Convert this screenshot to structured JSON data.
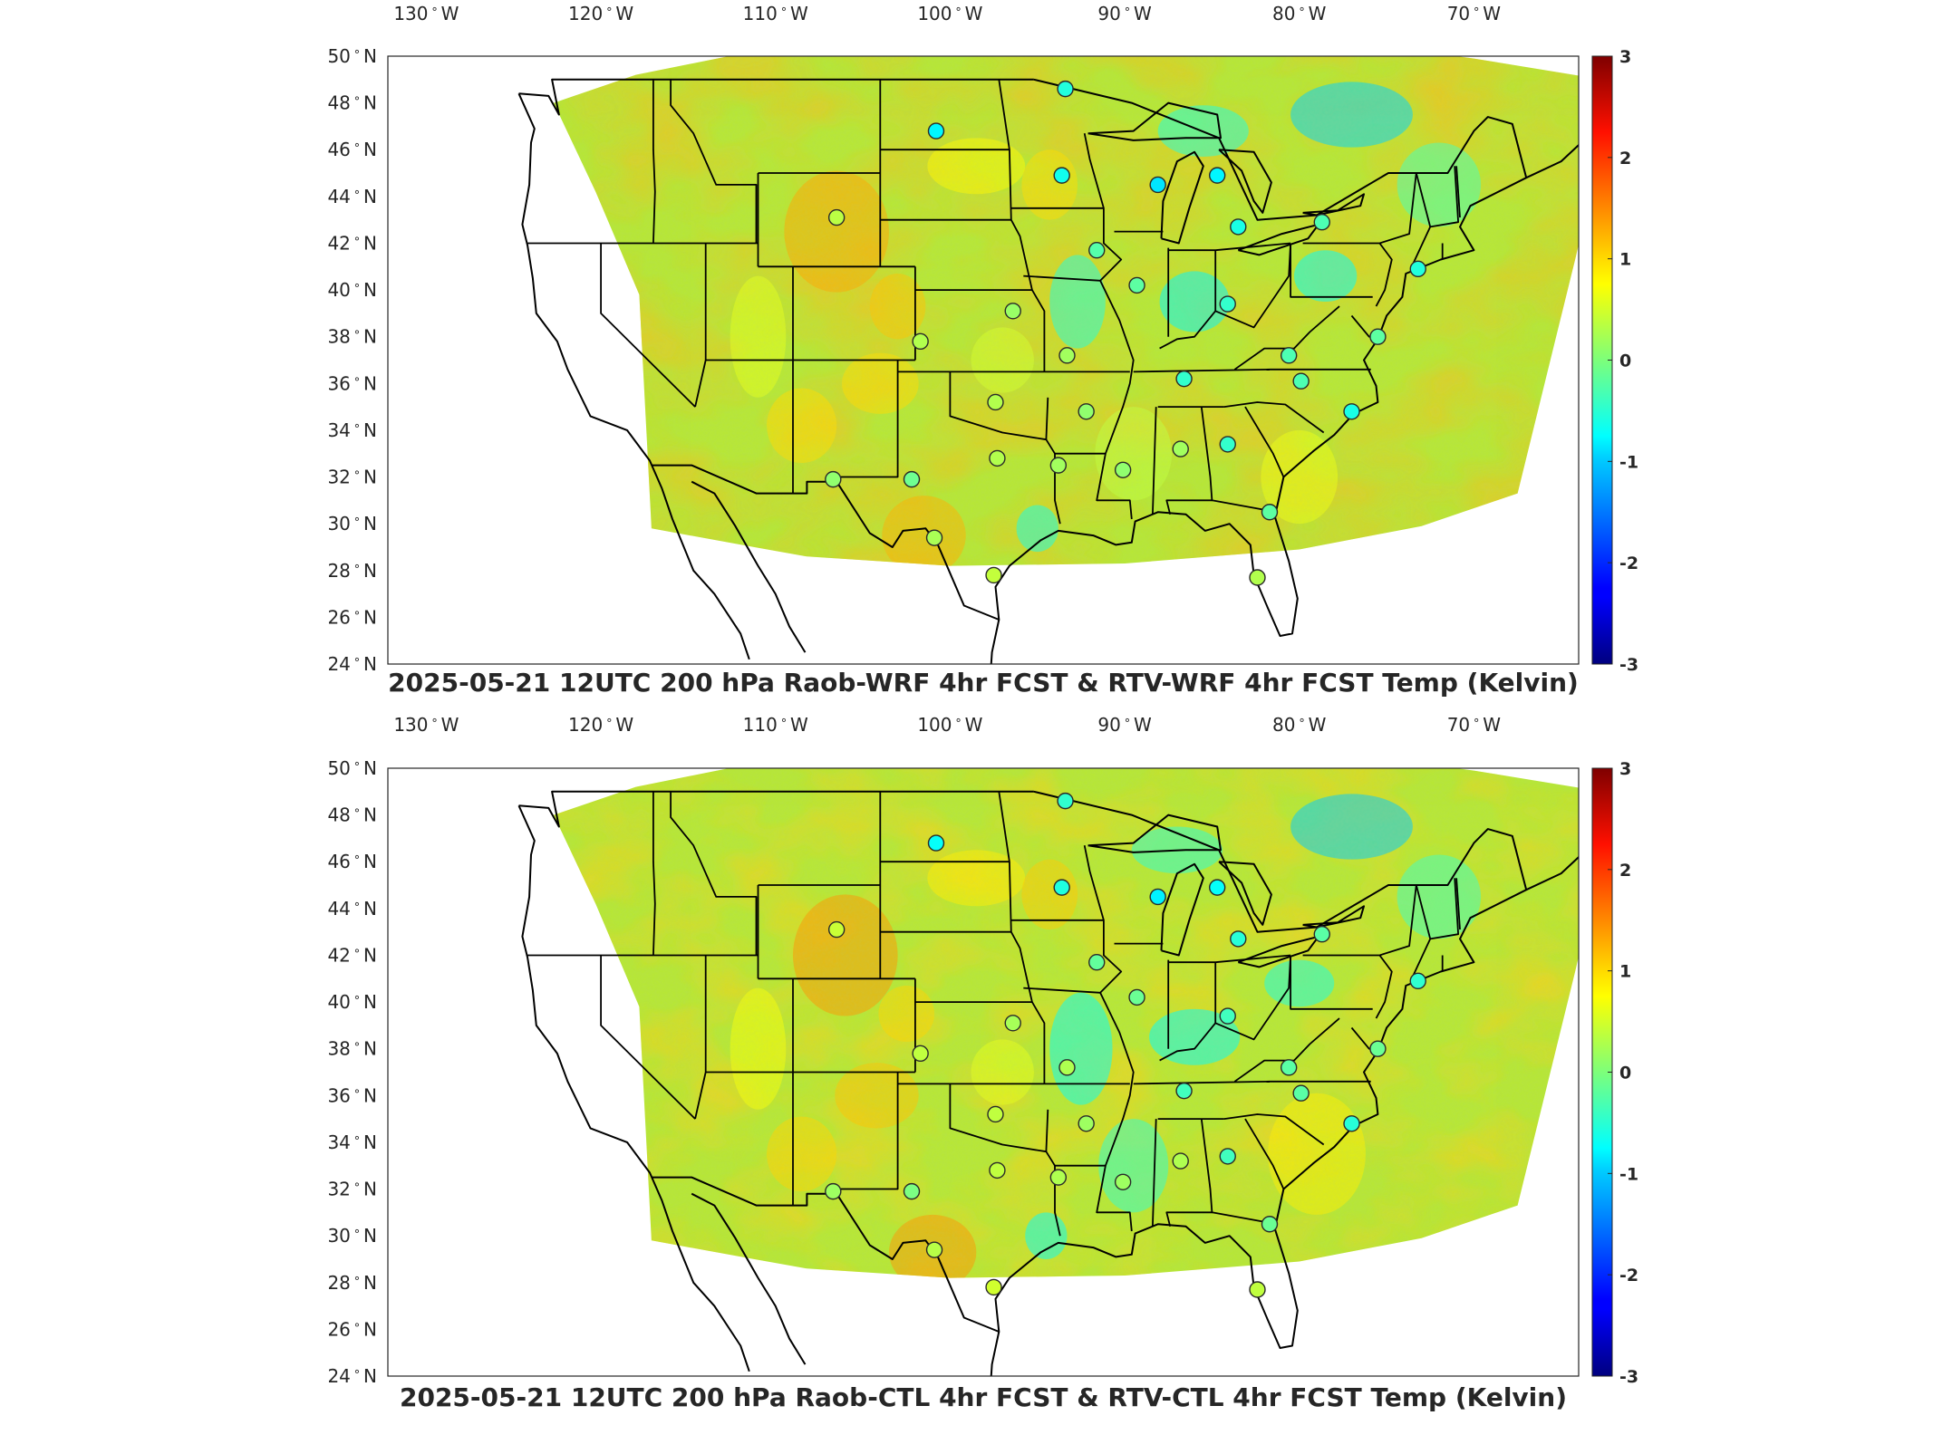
{
  "panels": [
    {
      "title": "2025-05-21 12UTC 200 hPa Raob-WRF 4hr FCST & RTV-WRF 4hr FCST Temp (Kelvin)",
      "variant": 0
    },
    {
      "title": "2025-05-21 12UTC 200 hPa Raob-CTL 4hr FCST & RTV-CTL 4hr FCST Temp (Kelvin)",
      "variant": 1
    }
  ],
  "lon_labels": [
    {
      "lon": -130,
      "text": "130",
      "hemi": "W"
    },
    {
      "lon": -120,
      "text": "120",
      "hemi": "W"
    },
    {
      "lon": -110,
      "text": "110",
      "hemi": "W"
    },
    {
      "lon": -100,
      "text": "100",
      "hemi": "W"
    },
    {
      "lon": -90,
      "text": "90",
      "hemi": "W"
    },
    {
      "lon": -80,
      "text": "80",
      "hemi": "W"
    },
    {
      "lon": -70,
      "text": "70",
      "hemi": "W"
    }
  ],
  "lat_labels": [
    {
      "lat": 50,
      "text": "50",
      "hemi": "N"
    },
    {
      "lat": 48,
      "text": "48",
      "hemi": "N"
    },
    {
      "lat": 46,
      "text": "46",
      "hemi": "N"
    },
    {
      "lat": 44,
      "text": "44",
      "hemi": "N"
    },
    {
      "lat": 42,
      "text": "42",
      "hemi": "N"
    },
    {
      "lat": 40,
      "text": "40",
      "hemi": "N"
    },
    {
      "lat": 38,
      "text": "38",
      "hemi": "N"
    },
    {
      "lat": 36,
      "text": "36",
      "hemi": "N"
    },
    {
      "lat": 34,
      "text": "34",
      "hemi": "N"
    },
    {
      "lat": 32,
      "text": "32",
      "hemi": "N"
    },
    {
      "lat": 30,
      "text": "30",
      "hemi": "N"
    },
    {
      "lat": 28,
      "text": "28",
      "hemi": "N"
    },
    {
      "lat": 26,
      "text": "26",
      "hemi": "N"
    },
    {
      "lat": 24,
      "text": "24",
      "hemi": "N"
    }
  ],
  "colorbar": {
    "min": -3,
    "max": 3,
    "ticks": [
      "3",
      "2",
      "1",
      "0",
      "-1",
      "-2",
      "-3"
    ],
    "colormap": "jet"
  },
  "colors": {
    "field_base": "#b8e832",
    "outline": "#000000",
    "station_edge": "#2a2a2a"
  },
  "raob_stations": [
    {
      "lon": -93.4,
      "lat": 48.6,
      "v": -0.55
    },
    {
      "lon": -100.8,
      "lat": 46.8,
      "v": -0.8
    },
    {
      "lon": -93.6,
      "lat": 44.9,
      "v": -0.65
    },
    {
      "lon": -88.1,
      "lat": 44.5,
      "v": -0.9
    },
    {
      "lon": -84.7,
      "lat": 44.9,
      "v": -0.8
    },
    {
      "lon": -106.5,
      "lat": 43.1,
      "v": 0.35
    },
    {
      "lon": -83.5,
      "lat": 42.7,
      "v": -0.6
    },
    {
      "lon": -78.7,
      "lat": 42.9,
      "v": -0.3
    },
    {
      "lon": -91.6,
      "lat": 41.7,
      "v": -0.25
    },
    {
      "lon": -89.3,
      "lat": 40.2,
      "v": -0.2
    },
    {
      "lon": -84.1,
      "lat": 39.4,
      "v": -0.45
    },
    {
      "lon": -73.2,
      "lat": 40.9,
      "v": -0.55
    },
    {
      "lon": -96.4,
      "lat": 39.1,
      "v": 0.15
    },
    {
      "lon": -101.7,
      "lat": 37.8,
      "v": 0.3
    },
    {
      "lon": -93.3,
      "lat": 37.2,
      "v": 0.2
    },
    {
      "lon": -80.6,
      "lat": 37.2,
      "v": -0.3
    },
    {
      "lon": -75.5,
      "lat": 38.0,
      "v": -0.2
    },
    {
      "lon": -86.6,
      "lat": 36.2,
      "v": -0.45
    },
    {
      "lon": -79.9,
      "lat": 36.1,
      "v": -0.3
    },
    {
      "lon": -97.4,
      "lat": 35.2,
      "v": 0.3
    },
    {
      "lon": -92.2,
      "lat": 34.8,
      "v": 0.1
    },
    {
      "lon": -77.0,
      "lat": 34.8,
      "v": -0.6
    },
    {
      "lon": -97.3,
      "lat": 32.8,
      "v": 0.3
    },
    {
      "lon": -93.8,
      "lat": 32.5,
      "v": 0.2
    },
    {
      "lon": -90.1,
      "lat": 32.3,
      "v": 0.1
    },
    {
      "lon": -86.8,
      "lat": 33.2,
      "v": 0.2
    },
    {
      "lon": -84.1,
      "lat": 33.4,
      "v": -0.45
    },
    {
      "lon": -106.7,
      "lat": 31.9,
      "v": 0.1
    },
    {
      "lon": -102.2,
      "lat": 31.9,
      "v": -0.1
    },
    {
      "lon": -81.7,
      "lat": 30.5,
      "v": -0.2
    },
    {
      "lon": -100.9,
      "lat": 29.4,
      "v": 0.25
    },
    {
      "lon": -97.5,
      "lat": 27.8,
      "v": 0.4
    },
    {
      "lon": -82.4,
      "lat": 27.7,
      "v": 0.3
    }
  ]
}
